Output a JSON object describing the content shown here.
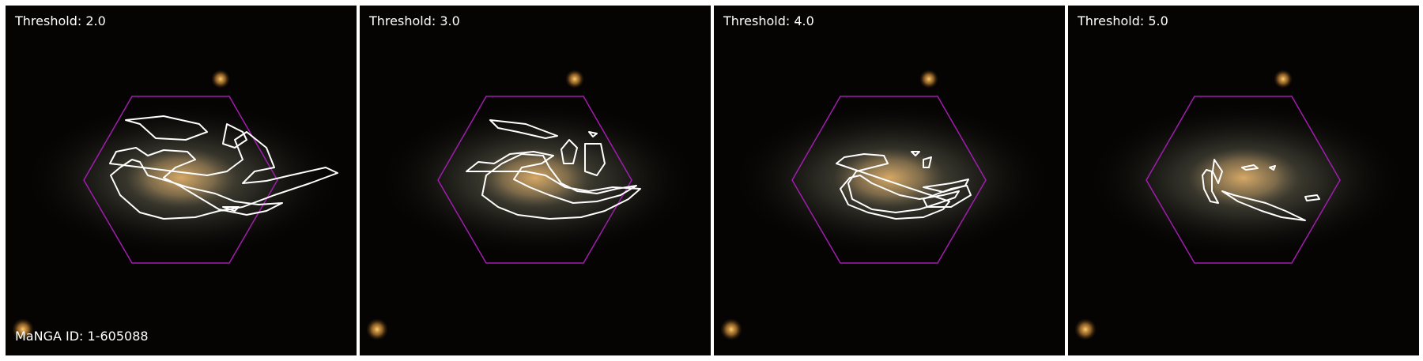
{
  "figure": {
    "galaxy_id_label": "MaNGA ID: 1-605088"
  },
  "panels": [
    {
      "label": "Threshold: 2.0"
    },
    {
      "label": "Threshold: 3.0"
    },
    {
      "label": "Threshold: 4.0"
    },
    {
      "label": "Threshold: 5.0"
    }
  ],
  "colors": {
    "hexagon": "#a21caf",
    "contour": "#ffffff",
    "background": "#050403",
    "galaxy_core": "#c9a46a",
    "star": "#e89a3a"
  }
}
